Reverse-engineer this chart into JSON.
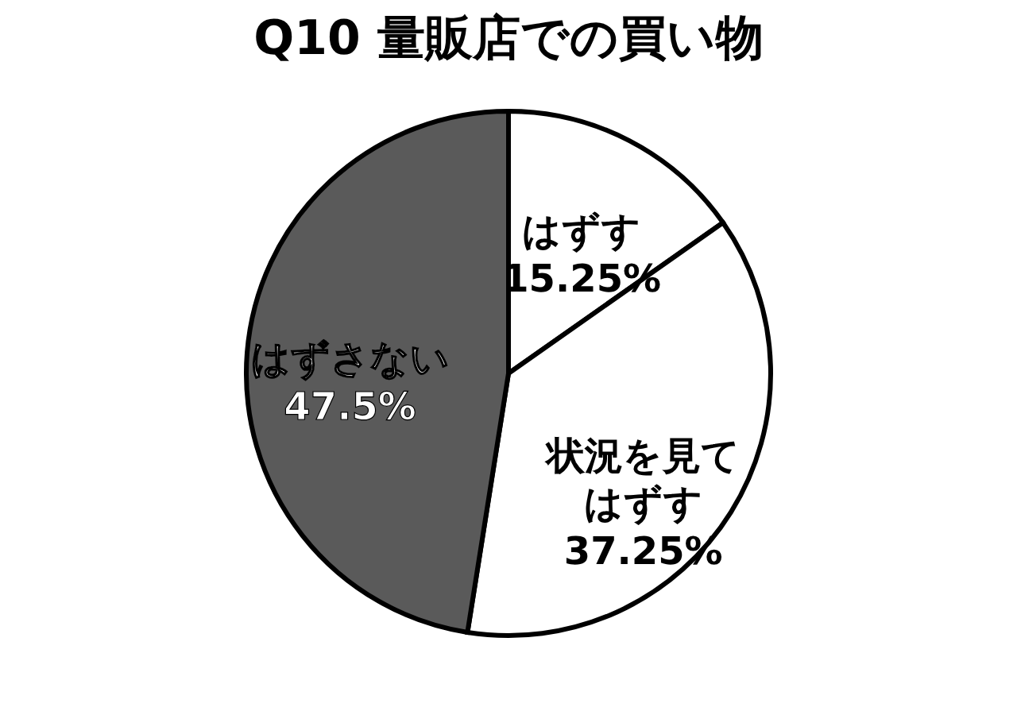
{
  "chart_data": {
    "type": "pie",
    "title": "Q10 量販店での買い物",
    "categories": [
      "はずす",
      "状況を見てはずす",
      "はずさない"
    ],
    "values": [
      15.25,
      37.25,
      47.5
    ],
    "colors": [
      "#ffffff",
      "#ffffff",
      "#5a5a5a"
    ],
    "value_labels": [
      "15.25%",
      "37.25%",
      "47.5%"
    ]
  }
}
